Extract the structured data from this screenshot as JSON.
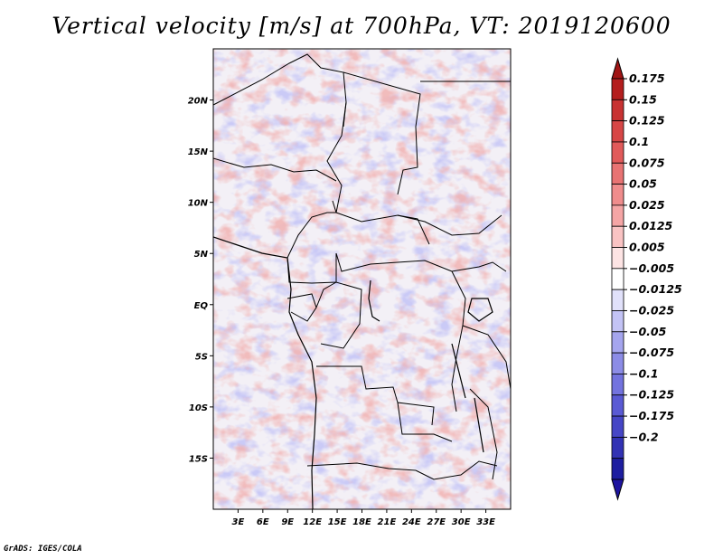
{
  "title": "Vertical velocity [m/s] at 700hPa, VT: 2019120600",
  "credit": "GrADS: IGES/COLA",
  "map": {
    "lon_range": [
      0,
      36
    ],
    "lat_range": [
      -20,
      25
    ],
    "lat_ticks": [
      "20N",
      "15N",
      "10N",
      "5N",
      "EQ",
      "5S",
      "10S",
      "15S"
    ],
    "lat_tick_values": [
      20,
      15,
      10,
      5,
      0,
      -5,
      -10,
      -15
    ],
    "lon_ticks": [
      "3E",
      "6E",
      "9E",
      "12E",
      "15E",
      "18E",
      "21E",
      "24E",
      "27E",
      "30E",
      "33E"
    ],
    "lon_tick_values": [
      3,
      6,
      9,
      12,
      15,
      18,
      21,
      24,
      27,
      30,
      33
    ]
  },
  "colorbar": {
    "labels": [
      "0.175",
      "0.15",
      "0.125",
      "0.1",
      "0.075",
      "0.05",
      "0.025",
      "0.0125",
      "0.005",
      "−0.005",
      "−0.0125",
      "−0.025",
      "−0.05",
      "−0.075",
      "−0.1",
      "−0.125",
      "−0.175",
      "−0.2"
    ],
    "colors": [
      "#b41e1e",
      "#c83232",
      "#d74646",
      "#e15a5a",
      "#e87373",
      "#ef8c8c",
      "#f5a5a5",
      "#f9c3c3",
      "#fde4e4",
      "#ffffff",
      "#e1e1fa",
      "#c3c3f5",
      "#a5a5ee",
      "#8c8ce6",
      "#7373de",
      "#5a5ad4",
      "#4646c6",
      "#3232b4",
      "#1e1ea0"
    ],
    "top_arrow_color": "#a01414",
    "bottom_arrow_color": "#1e14a0"
  }
}
